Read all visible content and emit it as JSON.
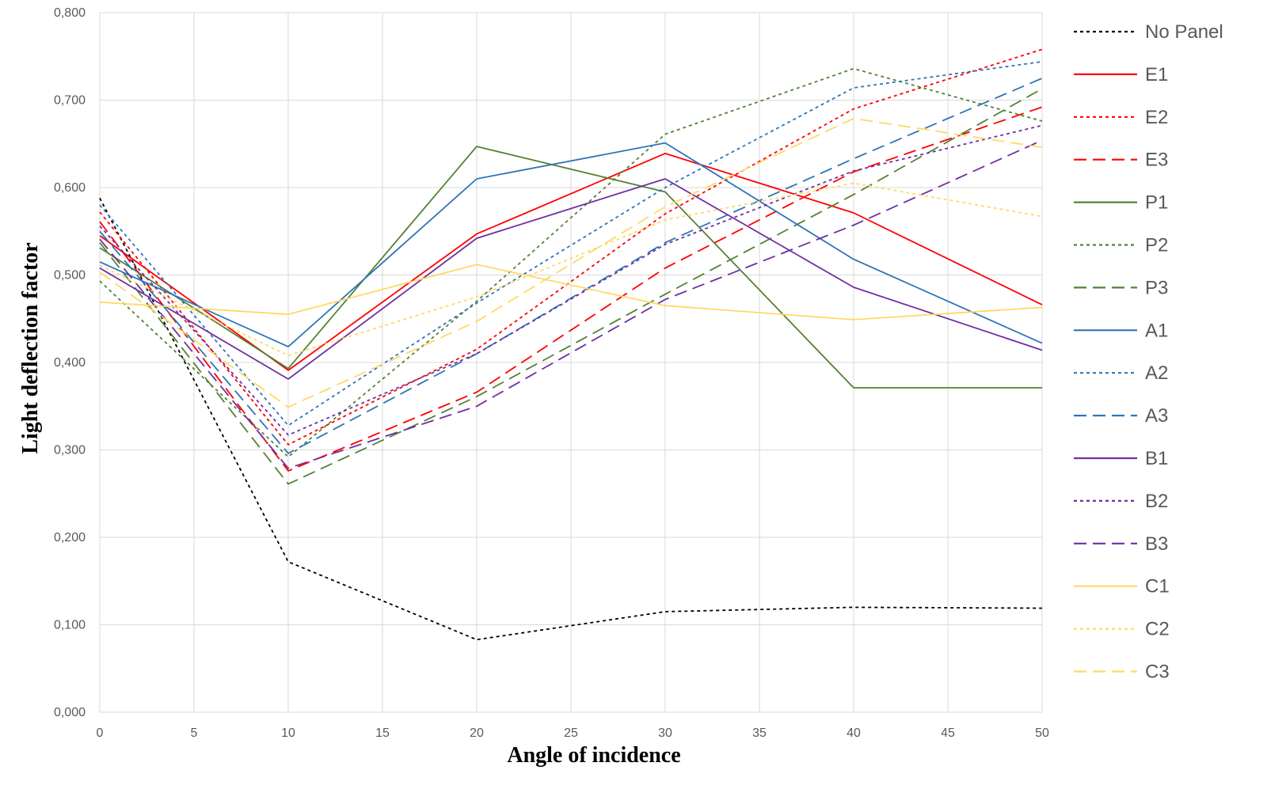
{
  "chart_data": {
    "type": "line",
    "title": "",
    "xlabel": "Angle of incidence",
    "ylabel": "Light deflection factor",
    "x": [
      0,
      10,
      20,
      30,
      40,
      50
    ],
    "xlim": [
      0,
      50
    ],
    "ylim": [
      0,
      0.8
    ],
    "x_ticks": [
      0,
      5,
      10,
      15,
      20,
      25,
      30,
      35,
      40,
      45,
      50
    ],
    "x_tick_labels": [
      "0",
      "5",
      "10",
      "15",
      "20",
      "25",
      "30",
      "35",
      "40",
      "45",
      "50"
    ],
    "y_ticks": [
      0,
      0.1,
      0.2,
      0.3,
      0.4,
      0.5,
      0.6,
      0.7,
      0.8
    ],
    "y_tick_labels": [
      "0,000",
      "0,100",
      "0,200",
      "0,300",
      "0,400",
      "0,500",
      "0,600",
      "0,700",
      "0,800"
    ],
    "grid": true,
    "legend_position": "right",
    "series": [
      {
        "name": "No Panel",
        "color": "#000000",
        "dash": "dot",
        "values": [
          0.588,
          0.172,
          0.083,
          0.115,
          0.12,
          0.119
        ]
      },
      {
        "name": "E1",
        "color": "#ff0000",
        "dash": "solid",
        "values": [
          0.545,
          0.391,
          0.547,
          0.639,
          0.571,
          0.466
        ]
      },
      {
        "name": "E2",
        "color": "#ff0000",
        "dash": "dot",
        "values": [
          0.572,
          0.306,
          0.415,
          0.57,
          0.69,
          0.758
        ]
      },
      {
        "name": "E3",
        "color": "#ff0000",
        "dash": "dash",
        "values": [
          0.561,
          0.276,
          0.366,
          0.508,
          0.618,
          0.692
        ]
      },
      {
        "name": "P1",
        "color": "#548235",
        "dash": "solid",
        "values": [
          0.531,
          0.393,
          0.647,
          0.595,
          0.371,
          0.371
        ]
      },
      {
        "name": "P2",
        "color": "#548235",
        "dash": "dot",
        "values": [
          0.493,
          0.292,
          0.47,
          0.661,
          0.736,
          0.676
        ]
      },
      {
        "name": "P3",
        "color": "#548235",
        "dash": "dash",
        "values": [
          0.537,
          0.261,
          0.361,
          0.478,
          0.592,
          0.713
        ]
      },
      {
        "name": "A1",
        "color": "#2e75b6",
        "dash": "solid",
        "values": [
          0.515,
          0.418,
          0.61,
          0.651,
          0.518,
          0.422
        ]
      },
      {
        "name": "A2",
        "color": "#2e75b6",
        "dash": "dot",
        "values": [
          0.58,
          0.328,
          0.468,
          0.6,
          0.714,
          0.744
        ]
      },
      {
        "name": "A3",
        "color": "#2e75b6",
        "dash": "dash",
        "values": [
          0.55,
          0.296,
          0.41,
          0.537,
          0.633,
          0.725
        ]
      },
      {
        "name": "B1",
        "color": "#7030a0",
        "dash": "solid",
        "values": [
          0.508,
          0.381,
          0.542,
          0.61,
          0.486,
          0.414
        ]
      },
      {
        "name": "B2",
        "color": "#7030a0",
        "dash": "dot",
        "values": [
          0.556,
          0.317,
          0.41,
          0.535,
          0.619,
          0.671
        ]
      },
      {
        "name": "B3",
        "color": "#7030a0",
        "dash": "dash",
        "values": [
          0.541,
          0.279,
          0.35,
          0.472,
          0.557,
          0.654
        ]
      },
      {
        "name": "C1",
        "color": "#ffd966",
        "dash": "solid",
        "values": [
          0.469,
          0.455,
          0.512,
          0.465,
          0.449,
          0.463
        ]
      },
      {
        "name": "C2",
        "color": "#ffd966",
        "dash": "dot",
        "values": [
          0.511,
          0.408,
          0.475,
          0.563,
          0.605,
          0.567
        ]
      },
      {
        "name": "C3",
        "color": "#ffd966",
        "dash": "dash",
        "values": [
          0.503,
          0.349,
          0.447,
          0.578,
          0.679,
          0.646
        ]
      }
    ]
  }
}
